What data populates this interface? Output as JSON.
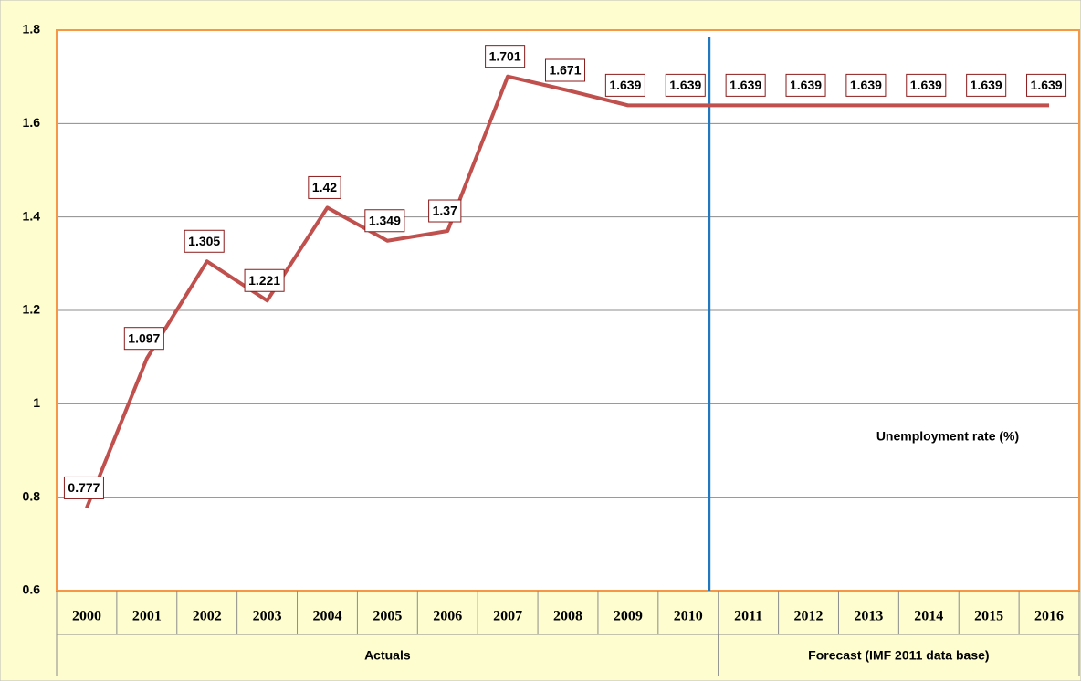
{
  "chart_data": {
    "type": "line",
    "categories": [
      "2000",
      "2001",
      "2002",
      "2003",
      "2004",
      "2005",
      "2006",
      "2007",
      "2008",
      "2009",
      "2010",
      "2011",
      "2012",
      "2013",
      "2014",
      "2015",
      "2016"
    ],
    "series": [
      {
        "name": "Unemployment rate (%)",
        "color": "#c0504d",
        "values": [
          0.777,
          1.097,
          1.305,
          1.221,
          1.42,
          1.349,
          1.37,
          1.701,
          1.671,
          1.639,
          1.639,
          1.639,
          1.639,
          1.639,
          1.639,
          1.639,
          1.639
        ]
      }
    ],
    "groups": [
      {
        "label": "Actuals",
        "span": 11
      },
      {
        "label": "Forecast (IMF 2011 data base)",
        "span": 6
      }
    ],
    "annotation": "Unemployment rate (%)",
    "ylim": [
      0.6,
      1.8
    ],
    "yticks": [
      0.6,
      0.8,
      1,
      1.2,
      1.4,
      1.6,
      1.8
    ],
    "grid": true
  }
}
